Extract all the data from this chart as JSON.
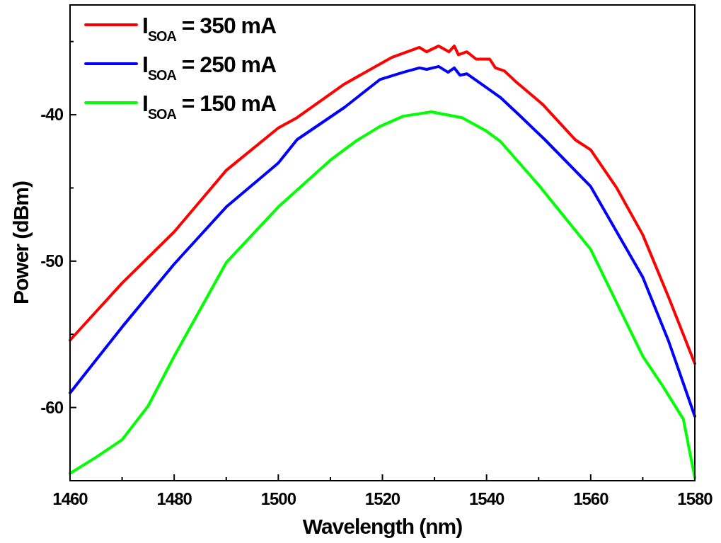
{
  "chart_data": {
    "type": "line",
    "xlabel": "Wavelength (nm)",
    "ylabel": "Power (dBm)",
    "xlim": [
      1460,
      1580
    ],
    "xticks": [
      1460,
      {
        "value": 1470,
        "label": null
      },
      1480,
      {
        "value": 1490,
        "label": null
      },
      1500,
      {
        "value": 1510,
        "label": null
      },
      1520,
      {
        "value": 1530,
        "label": null
      },
      1540,
      {
        "value": 1550,
        "label": null
      },
      1560,
      {
        "value": 1570,
        "label": null
      },
      1580
    ],
    "ylim": [
      -65,
      -32.5
    ],
    "yticks": [
      {
        "value": -55,
        "label": null
      },
      -60,
      -50,
      {
        "value": -45,
        "label": null
      },
      -40,
      {
        "value": -35,
        "label": null
      }
    ],
    "grid": false,
    "legend": "top left",
    "line_style": "solid",
    "marker": "none",
    "series": [
      {
        "name": "I$_{SOA}$ = 350 mA",
        "color": "#ff0000",
        "x": [
          1460,
          1470,
          1480,
          1490,
          1500,
          1503.6,
          1512.7,
          1521.7,
          1527.1,
          1528.5,
          1530.8,
          1532.8,
          1533.8,
          1534.6,
          1536.2,
          1538,
          1540.6,
          1541.7,
          1543.4,
          1545.8,
          1550.8,
          1557,
          1560,
          1565,
          1570,
          1575,
          1580
        ],
        "values": [
          -55.4,
          -51.5,
          -48,
          -43.8,
          -40.9,
          -40.2,
          -37.9,
          -36.1,
          -35.4,
          -35.7,
          -35.3,
          -35.7,
          -35.3,
          -35.9,
          -35.7,
          -36.2,
          -36.2,
          -36.8,
          -37,
          -37.8,
          -39.3,
          -41.7,
          -42.4,
          -45,
          -48.2,
          -52.5,
          -57
        ]
      },
      {
        "name": "I$_{SOA}$ = 250 mA",
        "color": "#0000ff",
        "x": [
          1460,
          1470,
          1480,
          1490,
          1500,
          1503.6,
          1512.7,
          1519.5,
          1524,
          1527.1,
          1528.5,
          1530.8,
          1532.6,
          1533.8,
          1534.9,
          1536.2,
          1539,
          1542.6,
          1546.2,
          1551.2,
          1560,
          1570,
          1575,
          1580
        ],
        "values": [
          -59,
          -54.5,
          -50.2,
          -46.3,
          -43.3,
          -41.7,
          -39.5,
          -37.6,
          -37.1,
          -36.8,
          -36.9,
          -36.7,
          -37.1,
          -36.8,
          -37.3,
          -37.2,
          -37.9,
          -38.8,
          -40,
          -41.7,
          -44.9,
          -51.1,
          -55.5,
          -60.6
        ]
      },
      {
        "name": "I$_{SOA}$ = 150 mA",
        "color": "#00ff00",
        "x": [
          1460,
          1465,
          1470,
          1475,
          1480,
          1490,
          1500,
          1510,
          1514.9,
          1519.5,
          1524,
          1529.4,
          1535.3,
          1539.9,
          1542.6,
          1550,
          1560,
          1570,
          1573.6,
          1577.8,
          1580
        ],
        "values": [
          -64.5,
          -63.4,
          -62.2,
          -59.9,
          -56.5,
          -50.1,
          -46.3,
          -43.1,
          -41.8,
          -40.8,
          -40.1,
          -39.8,
          -40.2,
          -41.1,
          -41.8,
          -44.8,
          -49.2,
          -56.5,
          -58.4,
          -60.8,
          -64.8
        ]
      }
    ]
  }
}
